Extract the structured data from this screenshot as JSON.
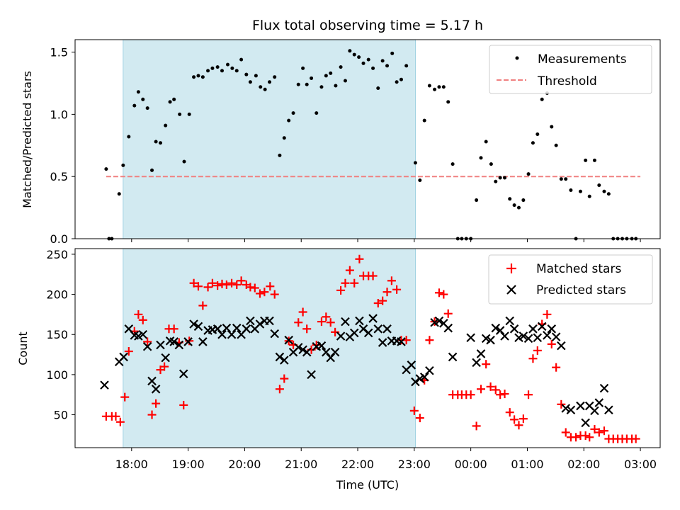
{
  "chart_data": {
    "title": "Flux total observing time = 5.17 h",
    "xlabel": "Time (UTC)",
    "time_axis": {
      "range_hours": [
        17.0,
        27.35
      ],
      "tick_values": [
        18,
        19,
        20,
        21,
        22,
        23,
        24,
        25,
        26,
        27
      ],
      "tick_labels": [
        "18:00",
        "19:00",
        "20:00",
        "21:00",
        "22:00",
        "23:00",
        "00:00",
        "01:00",
        "02:00",
        "03:00"
      ]
    },
    "shaded_span": {
      "x": [
        17.85,
        23.02
      ],
      "color": "#add8e6"
    },
    "top": {
      "type": "scatter",
      "ylabel": "Matched/Predicted stars",
      "ylim": [
        0,
        1.6
      ],
      "yticks": [
        0.0,
        0.5,
        1.0,
        1.5
      ],
      "ytick_labels": [
        "0.0",
        "0.5",
        "1.0",
        "1.5"
      ],
      "legend": [
        "Measurements",
        "Threshold"
      ],
      "threshold": {
        "value": 0.5,
        "x": [
          17.55,
          27.0
        ],
        "color": "#f08080"
      },
      "measurements": [
        [
          17.55,
          0.56
        ],
        [
          17.6,
          0.0
        ],
        [
          17.65,
          0.0
        ],
        [
          17.78,
          0.36
        ],
        [
          17.85,
          0.59
        ],
        [
          17.95,
          0.82
        ],
        [
          18.05,
          1.07
        ],
        [
          18.12,
          1.18
        ],
        [
          18.2,
          1.12
        ],
        [
          18.28,
          1.05
        ],
        [
          18.36,
          0.55
        ],
        [
          18.43,
          0.78
        ],
        [
          18.51,
          0.77
        ],
        [
          18.6,
          0.91
        ],
        [
          18.68,
          1.1
        ],
        [
          18.75,
          1.12
        ],
        [
          18.85,
          1.0
        ],
        [
          18.93,
          0.62
        ],
        [
          19.02,
          1.0
        ],
        [
          19.1,
          1.3
        ],
        [
          19.18,
          1.31
        ],
        [
          19.26,
          1.3
        ],
        [
          19.35,
          1.35
        ],
        [
          19.43,
          1.37
        ],
        [
          19.52,
          1.38
        ],
        [
          19.6,
          1.35
        ],
        [
          19.7,
          1.4
        ],
        [
          19.78,
          1.37
        ],
        [
          19.86,
          1.35
        ],
        [
          19.94,
          1.44
        ],
        [
          20.03,
          1.32
        ],
        [
          20.1,
          1.26
        ],
        [
          20.2,
          1.31
        ],
        [
          20.28,
          1.22
        ],
        [
          20.36,
          1.2
        ],
        [
          20.44,
          1.26
        ],
        [
          20.53,
          1.3
        ],
        [
          20.62,
          0.67
        ],
        [
          20.7,
          0.81
        ],
        [
          20.78,
          0.95
        ],
        [
          20.86,
          1.01
        ],
        [
          20.95,
          1.24
        ],
        [
          21.03,
          1.37
        ],
        [
          21.1,
          1.24
        ],
        [
          21.18,
          1.29
        ],
        [
          21.27,
          1.01
        ],
        [
          21.36,
          1.22
        ],
        [
          21.44,
          1.31
        ],
        [
          21.52,
          1.33
        ],
        [
          21.61,
          1.23
        ],
        [
          21.7,
          1.38
        ],
        [
          21.78,
          1.27
        ],
        [
          21.86,
          1.51
        ],
        [
          21.94,
          1.48
        ],
        [
          22.02,
          1.46
        ],
        [
          22.1,
          1.41
        ],
        [
          22.19,
          1.44
        ],
        [
          22.27,
          1.37
        ],
        [
          22.36,
          1.21
        ],
        [
          22.44,
          1.43
        ],
        [
          22.52,
          1.39
        ],
        [
          22.61,
          1.49
        ],
        [
          22.69,
          1.26
        ],
        [
          22.77,
          1.28
        ],
        [
          22.86,
          1.39
        ],
        [
          23.02,
          0.61
        ],
        [
          23.1,
          0.47
        ],
        [
          23.18,
          0.95
        ],
        [
          23.27,
          1.23
        ],
        [
          23.36,
          1.2
        ],
        [
          23.44,
          1.22
        ],
        [
          23.52,
          1.22
        ],
        [
          23.6,
          1.1
        ],
        [
          23.68,
          0.6
        ],
        [
          23.77,
          0.0
        ],
        [
          23.84,
          0.0
        ],
        [
          23.92,
          0.0
        ],
        [
          24.0,
          0.0
        ],
        [
          24.1,
          0.31
        ],
        [
          24.18,
          0.65
        ],
        [
          24.27,
          0.78
        ],
        [
          24.36,
          0.6
        ],
        [
          24.44,
          0.46
        ],
        [
          24.52,
          0.49
        ],
        [
          24.6,
          0.49
        ],
        [
          24.69,
          0.32
        ],
        [
          24.77,
          0.27
        ],
        [
          24.85,
          0.25
        ],
        [
          24.93,
          0.31
        ],
        [
          25.02,
          0.52
        ],
        [
          25.1,
          0.77
        ],
        [
          25.18,
          0.84
        ],
        [
          25.26,
          1.12
        ],
        [
          25.35,
          1.17
        ],
        [
          25.43,
          0.9
        ],
        [
          25.51,
          0.75
        ],
        [
          25.6,
          0.48
        ],
        [
          25.68,
          0.48
        ],
        [
          25.77,
          0.39
        ],
        [
          25.86,
          0.0
        ],
        [
          25.94,
          0.38
        ],
        [
          26.03,
          0.63
        ],
        [
          26.1,
          0.34
        ],
        [
          26.19,
          0.63
        ],
        [
          26.27,
          0.43
        ],
        [
          26.36,
          0.38
        ],
        [
          26.44,
          0.36
        ],
        [
          26.52,
          0.0
        ],
        [
          26.6,
          0.0
        ],
        [
          26.68,
          0.0
        ],
        [
          26.76,
          0.0
        ],
        [
          26.85,
          0.0
        ],
        [
          26.92,
          0.0
        ]
      ]
    },
    "bottom": {
      "type": "scatter",
      "ylabel": "Count",
      "ylim": [
        9,
        257
      ],
      "yticks": [
        50,
        100,
        150,
        200,
        250
      ],
      "ytick_labels": [
        "50",
        "100",
        "150",
        "200",
        "250"
      ],
      "legend": [
        "Matched stars",
        "Predicted stars"
      ],
      "matched_color": "#ff0000",
      "predicted_color": "#000000",
      "matched": [
        [
          17.55,
          48
        ],
        [
          17.65,
          48
        ],
        [
          17.72,
          48
        ],
        [
          17.8,
          41
        ],
        [
          17.88,
          72
        ],
        [
          17.95,
          129
        ],
        [
          18.05,
          154
        ],
        [
          18.12,
          175
        ],
        [
          18.2,
          168
        ],
        [
          18.28,
          141
        ],
        [
          18.36,
          50
        ],
        [
          18.43,
          64
        ],
        [
          18.51,
          106
        ],
        [
          18.58,
          110
        ],
        [
          18.66,
          157
        ],
        [
          18.75,
          157
        ],
        [
          18.84,
          140
        ],
        [
          18.92,
          62
        ],
        [
          19.02,
          142
        ],
        [
          19.1,
          214
        ],
        [
          19.18,
          210
        ],
        [
          19.26,
          186
        ],
        [
          19.35,
          209
        ],
        [
          19.43,
          214
        ],
        [
          19.52,
          211
        ],
        [
          19.6,
          213
        ],
        [
          19.68,
          212
        ],
        [
          19.77,
          214
        ],
        [
          19.86,
          212
        ],
        [
          19.94,
          217
        ],
        [
          20.03,
          212
        ],
        [
          20.1,
          209
        ],
        [
          20.18,
          208
        ],
        [
          20.27,
          201
        ],
        [
          20.35,
          203
        ],
        [
          20.45,
          210
        ],
        [
          20.53,
          200
        ],
        [
          20.62,
          82
        ],
        [
          20.7,
          95
        ],
        [
          20.78,
          142
        ],
        [
          20.86,
          137
        ],
        [
          20.95,
          165
        ],
        [
          21.03,
          178
        ],
        [
          21.1,
          157
        ],
        [
          21.18,
          131
        ],
        [
          21.27,
          137
        ],
        [
          21.36,
          166
        ],
        [
          21.44,
          172
        ],
        [
          21.52,
          165
        ],
        [
          21.6,
          153
        ],
        [
          21.7,
          205
        ],
        [
          21.78,
          214
        ],
        [
          21.86,
          230
        ],
        [
          21.94,
          214
        ],
        [
          22.03,
          244
        ],
        [
          22.1,
          223
        ],
        [
          22.19,
          223
        ],
        [
          22.27,
          223
        ],
        [
          22.36,
          189
        ],
        [
          22.44,
          192
        ],
        [
          22.52,
          203
        ],
        [
          22.6,
          217
        ],
        [
          22.69,
          206
        ],
        [
          22.77,
          143
        ],
        [
          22.86,
          143
        ],
        [
          23.0,
          55
        ],
        [
          23.1,
          46
        ],
        [
          23.18,
          93
        ],
        [
          23.27,
          143
        ],
        [
          23.36,
          166
        ],
        [
          23.44,
          202
        ],
        [
          23.52,
          200
        ],
        [
          23.6,
          176
        ],
        [
          23.68,
          75
        ],
        [
          23.77,
          75
        ],
        [
          23.84,
          75
        ],
        [
          23.92,
          75
        ],
        [
          24.0,
          75
        ],
        [
          24.1,
          36
        ],
        [
          24.18,
          82
        ],
        [
          24.27,
          113
        ],
        [
          24.35,
          85
        ],
        [
          24.44,
          81
        ],
        [
          24.52,
          75
        ],
        [
          24.6,
          76
        ],
        [
          24.69,
          53
        ],
        [
          24.77,
          44
        ],
        [
          24.85,
          37
        ],
        [
          24.93,
          45
        ],
        [
          25.02,
          75
        ],
        [
          25.1,
          120
        ],
        [
          25.18,
          130
        ],
        [
          25.26,
          163
        ],
        [
          25.35,
          175
        ],
        [
          25.43,
          138
        ],
        [
          25.51,
          109
        ],
        [
          25.6,
          63
        ],
        [
          25.68,
          28
        ],
        [
          25.77,
          22
        ],
        [
          25.86,
          22
        ],
        [
          25.94,
          24
        ],
        [
          26.03,
          24
        ],
        [
          26.1,
          22
        ],
        [
          26.19,
          32
        ],
        [
          26.27,
          28
        ],
        [
          26.36,
          30
        ],
        [
          26.44,
          20
        ],
        [
          26.52,
          20
        ],
        [
          26.6,
          20
        ],
        [
          26.68,
          20
        ],
        [
          26.76,
          20
        ],
        [
          26.85,
          20
        ],
        [
          26.92,
          20
        ]
      ],
      "predicted": [
        [
          17.52,
          87
        ],
        [
          17.78,
          116
        ],
        [
          17.86,
          122
        ],
        [
          17.95,
          157
        ],
        [
          18.05,
          149
        ],
        [
          18.12,
          148
        ],
        [
          18.2,
          150
        ],
        [
          18.28,
          135
        ],
        [
          18.36,
          92
        ],
        [
          18.43,
          82
        ],
        [
          18.51,
          137
        ],
        [
          18.6,
          121
        ],
        [
          18.68,
          142
        ],
        [
          18.75,
          141
        ],
        [
          18.84,
          137
        ],
        [
          18.92,
          101
        ],
        [
          19.0,
          141
        ],
        [
          19.1,
          163
        ],
        [
          19.18,
          160
        ],
        [
          19.26,
          141
        ],
        [
          19.35,
          155
        ],
        [
          19.43,
          156
        ],
        [
          19.52,
          157
        ],
        [
          19.6,
          150
        ],
        [
          19.68,
          158
        ],
        [
          19.77,
          150
        ],
        [
          19.86,
          158
        ],
        [
          19.94,
          150
        ],
        [
          20.03,
          157
        ],
        [
          20.1,
          167
        ],
        [
          20.18,
          157
        ],
        [
          20.27,
          163
        ],
        [
          20.35,
          167
        ],
        [
          20.44,
          167
        ],
        [
          20.53,
          151
        ],
        [
          20.62,
          122
        ],
        [
          20.7,
          118
        ],
        [
          20.78,
          143
        ],
        [
          20.86,
          128
        ],
        [
          20.95,
          134
        ],
        [
          21.03,
          131
        ],
        [
          21.1,
          128
        ],
        [
          21.18,
          100
        ],
        [
          21.27,
          135
        ],
        [
          21.36,
          136
        ],
        [
          21.44,
          128
        ],
        [
          21.52,
          121
        ],
        [
          21.6,
          128
        ],
        [
          21.7,
          148
        ],
        [
          21.78,
          166
        ],
        [
          21.86,
          147
        ],
        [
          21.94,
          152
        ],
        [
          22.03,
          167
        ],
        [
          22.1,
          157
        ],
        [
          22.19,
          152
        ],
        [
          22.27,
          170
        ],
        [
          22.36,
          157
        ],
        [
          22.44,
          140
        ],
        [
          22.52,
          157
        ],
        [
          22.6,
          142
        ],
        [
          22.69,
          142
        ],
        [
          22.77,
          141
        ],
        [
          22.86,
          106
        ],
        [
          22.95,
          112
        ],
        [
          23.02,
          91
        ],
        [
          23.1,
          95
        ],
        [
          23.18,
          97
        ],
        [
          23.27,
          105
        ],
        [
          23.36,
          165
        ],
        [
          23.44,
          167
        ],
        [
          23.52,
          164
        ],
        [
          23.6,
          158
        ],
        [
          23.68,
          122
        ],
        [
          24.0,
          146
        ],
        [
          24.1,
          115
        ],
        [
          24.18,
          126
        ],
        [
          24.27,
          145
        ],
        [
          24.35,
          143
        ],
        [
          24.44,
          158
        ],
        [
          24.52,
          155
        ],
        [
          24.6,
          148
        ],
        [
          24.69,
          167
        ],
        [
          24.77,
          157
        ],
        [
          24.85,
          146
        ],
        [
          24.93,
          148
        ],
        [
          25.02,
          145
        ],
        [
          25.1,
          157
        ],
        [
          25.18,
          146
        ],
        [
          25.26,
          160
        ],
        [
          25.35,
          149
        ],
        [
          25.43,
          157
        ],
        [
          25.51,
          147
        ],
        [
          25.6,
          136
        ],
        [
          25.68,
          58
        ],
        [
          25.77,
          56
        ],
        [
          25.94,
          61
        ],
        [
          26.03,
          40
        ],
        [
          26.1,
          61
        ],
        [
          26.19,
          55
        ],
        [
          26.27,
          65
        ],
        [
          26.36,
          83
        ],
        [
          26.44,
          56
        ]
      ]
    }
  }
}
